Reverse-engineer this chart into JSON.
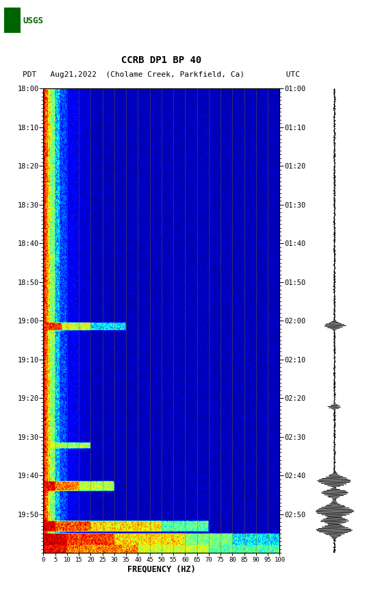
{
  "title_line1": "CCRB DP1 BP 40",
  "title_line2": "PDT   Aug21,2022  (Cholame Creek, Parkfield, Ca)         UTC",
  "xlabel": "FREQUENCY (HZ)",
  "freq_ticks": [
    0,
    5,
    10,
    15,
    20,
    25,
    30,
    35,
    40,
    45,
    50,
    55,
    60,
    65,
    70,
    75,
    80,
    85,
    90,
    95,
    100
  ],
  "freq_min": 0,
  "freq_max": 100,
  "pdt_labels": [
    "18:00",
    "18:10",
    "18:20",
    "18:30",
    "18:40",
    "18:50",
    "19:00",
    "19:10",
    "19:20",
    "19:30",
    "19:40",
    "19:50"
  ],
  "utc_labels": [
    "01:00",
    "01:10",
    "01:20",
    "01:30",
    "01:40",
    "01:50",
    "02:00",
    "02:10",
    "02:20",
    "02:30",
    "02:40",
    "02:50"
  ],
  "n_time_bins": 480,
  "n_freq_bins": 400,
  "colormap": "jet",
  "usgs_green": "#006400"
}
